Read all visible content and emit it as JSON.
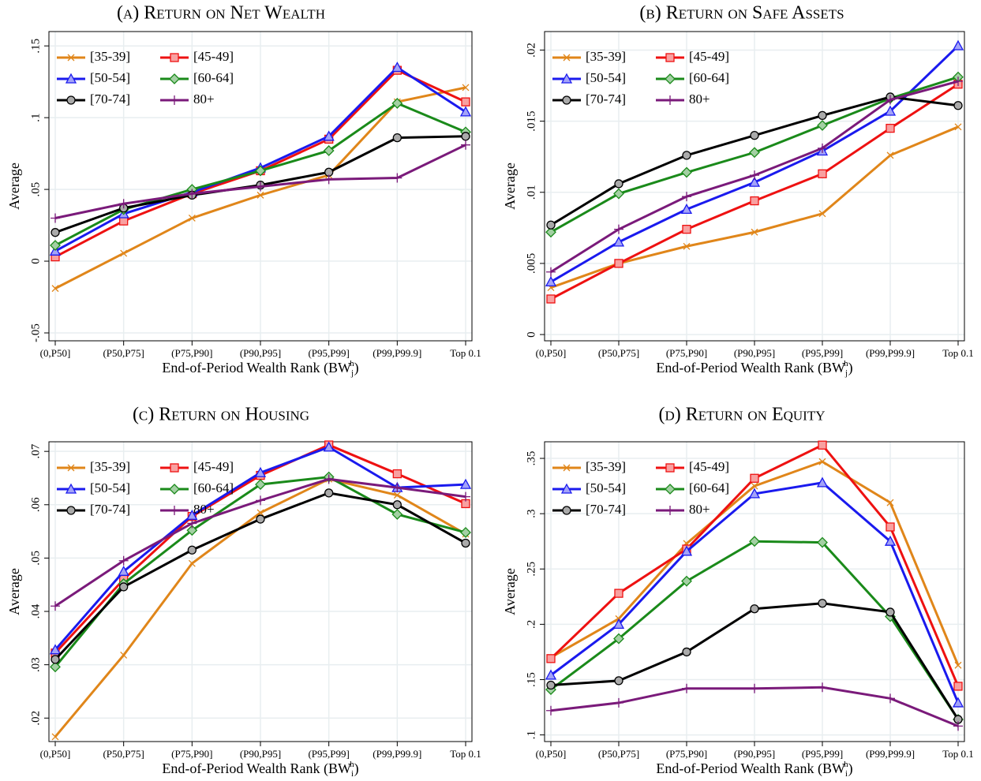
{
  "chart_data": [
    {
      "type": "line",
      "title": "(a) Return on Net Wealth",
      "y_label": "Average",
      "x_label": "End-of-Period Wealth Rank (BW",
      "x_label_sub": "j",
      "x_label_sup": "h",
      "x_label_end": ")",
      "categories": [
        "(0,P50]",
        "(P50,P75]",
        "(P75,P90]",
        "(P90,P95]",
        "(P95,P99]",
        "(P99,P99.9]",
        "Top 0.1"
      ],
      "ylim": [
        -0.0555,
        0.16
      ],
      "yticks": [
        {
          "value": -0.05,
          "label": "-.05"
        },
        0,
        {
          "value": 0.05,
          "label": ".05"
        },
        {
          "value": 0.1,
          "label": ".1"
        },
        {
          "value": 0.15,
          "label": ".15"
        }
      ],
      "grid": true,
      "legend": "upper left",
      "series": [
        {
          "name": "[35-39]",
          "color": "#e0861a",
          "marker": "x",
          "values": [
            -0.019,
            0.0055,
            0.03,
            0.046,
            0.06,
            0.111,
            0.121
          ]
        },
        {
          "name": "[45-49]",
          "color": "#ee1111",
          "marker": "square",
          "values": [
            0.003,
            0.028,
            0.047,
            0.063,
            0.085,
            0.133,
            0.111
          ]
        },
        {
          "name": "[50-54]",
          "color": "#1a1aee",
          "marker": "triangle",
          "values": [
            0.007,
            0.033,
            0.048,
            0.065,
            0.087,
            0.135,
            0.104
          ]
        },
        {
          "name": "[60-64]",
          "color": "#1a8a1a",
          "marker": "diamond",
          "values": [
            0.011,
            0.036,
            0.05,
            0.063,
            0.077,
            0.11,
            0.09
          ]
        },
        {
          "name": "[70-74]",
          "color": "#000000",
          "marker": "circle",
          "values": [
            0.02,
            0.037,
            0.046,
            0.053,
            0.062,
            0.086,
            0.087
          ]
        },
        {
          "name": "80+",
          "color": "#7a1a7a",
          "marker": "plus",
          "values": [
            0.03,
            0.04,
            0.047,
            0.052,
            0.057,
            0.058,
            0.081
          ]
        }
      ]
    },
    {
      "type": "line",
      "title": "(b) Return on Safe Assets",
      "y_label": "Average",
      "x_label": "End-of-Period Wealth Rank (BW",
      "x_label_sub": "j",
      "x_label_sup": "h",
      "x_label_end": ")",
      "categories": [
        "(0,P50]",
        "(P50,P75]",
        "(P75,P90]",
        "(P90,P95]",
        "(P95,P99]",
        "(P99,P99.9]",
        "Top 0.1"
      ],
      "ylim": [
        -0.00044,
        0.0213
      ],
      "yticks": [
        0,
        {
          "value": 0.005,
          "label": ".005"
        },
        {
          "value": 0.01,
          "label": ".01"
        },
        {
          "value": 0.015,
          "label": ".015"
        },
        {
          "value": 0.02,
          "label": ".02"
        }
      ],
      "grid": true,
      "legend": "upper left",
      "series": [
        {
          "name": "[35-39]",
          "color": "#e0861a",
          "marker": "x",
          "values": [
            0.0033,
            0.005,
            0.0062,
            0.0072,
            0.0085,
            0.0126,
            0.0146
          ]
        },
        {
          "name": "[45-49]",
          "color": "#ee1111",
          "marker": "square",
          "values": [
            0.0025,
            0.005,
            0.0074,
            0.0094,
            0.0113,
            0.0145,
            0.0176
          ]
        },
        {
          "name": "[50-54]",
          "color": "#1a1aee",
          "marker": "triangle",
          "values": [
            0.0037,
            0.0065,
            0.0088,
            0.0107,
            0.0129,
            0.0157,
            0.0203
          ]
        },
        {
          "name": "[60-64]",
          "color": "#1a8a1a",
          "marker": "diamond",
          "values": [
            0.0072,
            0.0099,
            0.0114,
            0.0128,
            0.0147,
            0.0166,
            0.0181
          ]
        },
        {
          "name": "[70-74]",
          "color": "#000000",
          "marker": "circle",
          "values": [
            0.0077,
            0.0106,
            0.0126,
            0.014,
            0.0154,
            0.0167,
            0.0161
          ]
        },
        {
          "name": "80+",
          "color": "#7a1a7a",
          "marker": "plus",
          "values": [
            0.0044,
            0.0074,
            0.0097,
            0.0112,
            0.0131,
            0.0165,
            0.0178
          ]
        }
      ]
    },
    {
      "type": "line",
      "title": "(c) Return on Housing",
      "y_label": "Average",
      "x_label": "End-of-Period Wealth Rank (BW",
      "x_label_sub": "i",
      "x_label_sup": "h",
      "x_label_end": ")",
      "categories": [
        "(0,P50]",
        "(P50,P75]",
        "(P75,P90]",
        "(P90,P95]",
        "(P95,P99]",
        "(P99,P99.9]",
        "Top 0.1"
      ],
      "ylim": [
        0.0156,
        0.0718
      ],
      "yticks": [
        {
          "value": 0.02,
          "label": ".02"
        },
        {
          "value": 0.03,
          "label": ".03"
        },
        {
          "value": 0.04,
          "label": ".04"
        },
        {
          "value": 0.05,
          "label": ".05"
        },
        {
          "value": 0.06,
          "label": ".06"
        },
        {
          "value": 0.07,
          "label": ".07"
        }
      ],
      "grid": true,
      "legend": "upper left",
      "series": [
        {
          "name": "[35-39]",
          "color": "#e0861a",
          "marker": "x",
          "values": [
            0.0165,
            0.0318,
            0.049,
            0.0585,
            0.0648,
            0.0618,
            0.0545
          ]
        },
        {
          "name": "[45-49]",
          "color": "#ee1111",
          "marker": "square",
          "values": [
            0.0322,
            0.046,
            0.0578,
            0.0655,
            0.0712,
            0.0658,
            0.0602
          ]
        },
        {
          "name": "[50-54]",
          "color": "#1a1aee",
          "marker": "triangle",
          "values": [
            0.0328,
            0.0475,
            0.058,
            0.066,
            0.0708,
            0.0632,
            0.0638
          ]
        },
        {
          "name": "[60-64]",
          "color": "#1a8a1a",
          "marker": "diamond",
          "values": [
            0.0296,
            0.0452,
            0.0552,
            0.0638,
            0.0652,
            0.0582,
            0.0548
          ]
        },
        {
          "name": "[70-74]",
          "color": "#000000",
          "marker": "circle",
          "values": [
            0.031,
            0.0446,
            0.0515,
            0.0573,
            0.0622,
            0.06,
            0.0528
          ]
        },
        {
          "name": "80+",
          "color": "#7a1a7a",
          "marker": "plus",
          "values": [
            0.041,
            0.0495,
            0.0565,
            0.0608,
            0.0648,
            0.0632,
            0.0615
          ]
        }
      ]
    },
    {
      "type": "line",
      "title": "(d) Return on Equity",
      "y_label": "Average",
      "x_label": "End-of-Period Wealth Rank (BW",
      "x_label_sub": "i",
      "x_label_sup": "h",
      "x_label_end": ")",
      "categories": [
        "(0,P50]",
        "(P50,P75]",
        "(P75,P90]",
        "(P90,P95]",
        "(P95,P99]",
        "(P99,P99.9]",
        "Top 0.1"
      ],
      "ylim": [
        0.094,
        0.365
      ],
      "yticks": [
        {
          "value": 0.1,
          "label": ".1"
        },
        {
          "value": 0.15,
          "label": ".15"
        },
        {
          "value": 0.2,
          "label": ".2"
        },
        {
          "value": 0.25,
          "label": ".25"
        },
        {
          "value": 0.3,
          "label": ".3"
        },
        {
          "value": 0.35,
          "label": ".35"
        }
      ],
      "grid": true,
      "legend": "upper left",
      "series": [
        {
          "name": "[35-39]",
          "color": "#e0861a",
          "marker": "x",
          "values": [
            0.17,
            0.205,
            0.273,
            0.325,
            0.347,
            0.31,
            0.163
          ]
        },
        {
          "name": "[45-49]",
          "color": "#ee1111",
          "marker": "square",
          "values": [
            0.169,
            0.228,
            0.268,
            0.332,
            0.362,
            0.288,
            0.144
          ]
        },
        {
          "name": "[50-54]",
          "color": "#1a1aee",
          "marker": "triangle",
          "values": [
            0.154,
            0.2,
            0.266,
            0.318,
            0.328,
            0.275,
            0.129
          ]
        },
        {
          "name": "[60-64]",
          "color": "#1a8a1a",
          "marker": "diamond",
          "values": [
            0.141,
            0.187,
            0.239,
            0.275,
            0.274,
            0.207,
            0.114
          ]
        },
        {
          "name": "[70-74]",
          "color": "#000000",
          "marker": "circle",
          "values": [
            0.145,
            0.149,
            0.175,
            0.214,
            0.219,
            0.211,
            0.114
          ]
        },
        {
          "name": "80+",
          "color": "#7a1a7a",
          "marker": "plus",
          "values": [
            0.122,
            0.129,
            0.142,
            0.142,
            0.143,
            0.133,
            0.108
          ]
        }
      ]
    }
  ]
}
